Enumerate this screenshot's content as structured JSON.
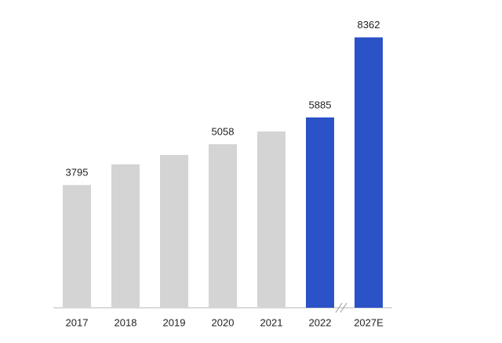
{
  "chart_data": {
    "type": "bar",
    "categories": [
      "2017",
      "2018",
      "2019",
      "2020",
      "2021",
      "2022",
      "2027E"
    ],
    "values": [
      3795,
      4435,
      4726,
      5058,
      5453,
      5885,
      8362
    ],
    "value_labels": [
      "3795",
      null,
      null,
      "5058",
      null,
      "5885",
      "8362"
    ],
    "colors": [
      "#d4d4d4",
      "#d4d4d4",
      "#d4d4d4",
      "#d4d4d4",
      "#d4d4d4",
      "#2b52c6",
      "#2b52c6"
    ],
    "ylim": [
      0,
      8500
    ]
  }
}
